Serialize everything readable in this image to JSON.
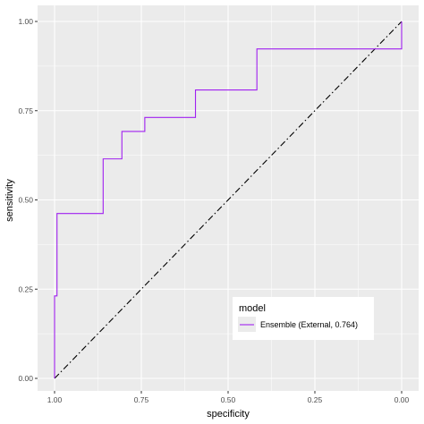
{
  "chart_data": {
    "type": "line",
    "xlabel": "specificity",
    "ylabel": "sensitivity",
    "x_reversed": true,
    "xlim": [
      1.0,
      0.0
    ],
    "ylim": [
      0.0,
      1.0
    ],
    "x_ticks": [
      1.0,
      0.75,
      0.5,
      0.25,
      0.0
    ],
    "x_tick_labels": [
      "1.00",
      "0.75",
      "0.50",
      "0.25",
      "0.00"
    ],
    "y_ticks": [
      0.0,
      0.25,
      0.5,
      0.75,
      1.0
    ],
    "y_tick_labels": [
      "0.00",
      "0.25",
      "0.50",
      "0.75",
      "1.00"
    ],
    "grid": true,
    "background": "#ebebeb",
    "legend": {
      "title": "model",
      "position": "bottom-right"
    },
    "series": [
      {
        "name": "Ensemble (External, 0.764)",
        "color": "#a020f0",
        "step": true,
        "points": [
          [
            1.0,
            0.0
          ],
          [
            1.0,
            0.231
          ],
          [
            0.993,
            0.231
          ],
          [
            0.993,
            0.462
          ],
          [
            0.86,
            0.462
          ],
          [
            0.86,
            0.615
          ],
          [
            0.806,
            0.615
          ],
          [
            0.806,
            0.692
          ],
          [
            0.74,
            0.692
          ],
          [
            0.74,
            0.731
          ],
          [
            0.594,
            0.731
          ],
          [
            0.594,
            0.808
          ],
          [
            0.417,
            0.808
          ],
          [
            0.417,
            0.923
          ],
          [
            0.0,
            0.923
          ],
          [
            0.0,
            1.0
          ]
        ]
      }
    ],
    "reference_line": {
      "from": [
        1.0,
        0.0
      ],
      "to": [
        0.0,
        1.0
      ],
      "style": "dashdot",
      "color": "#000000"
    }
  }
}
